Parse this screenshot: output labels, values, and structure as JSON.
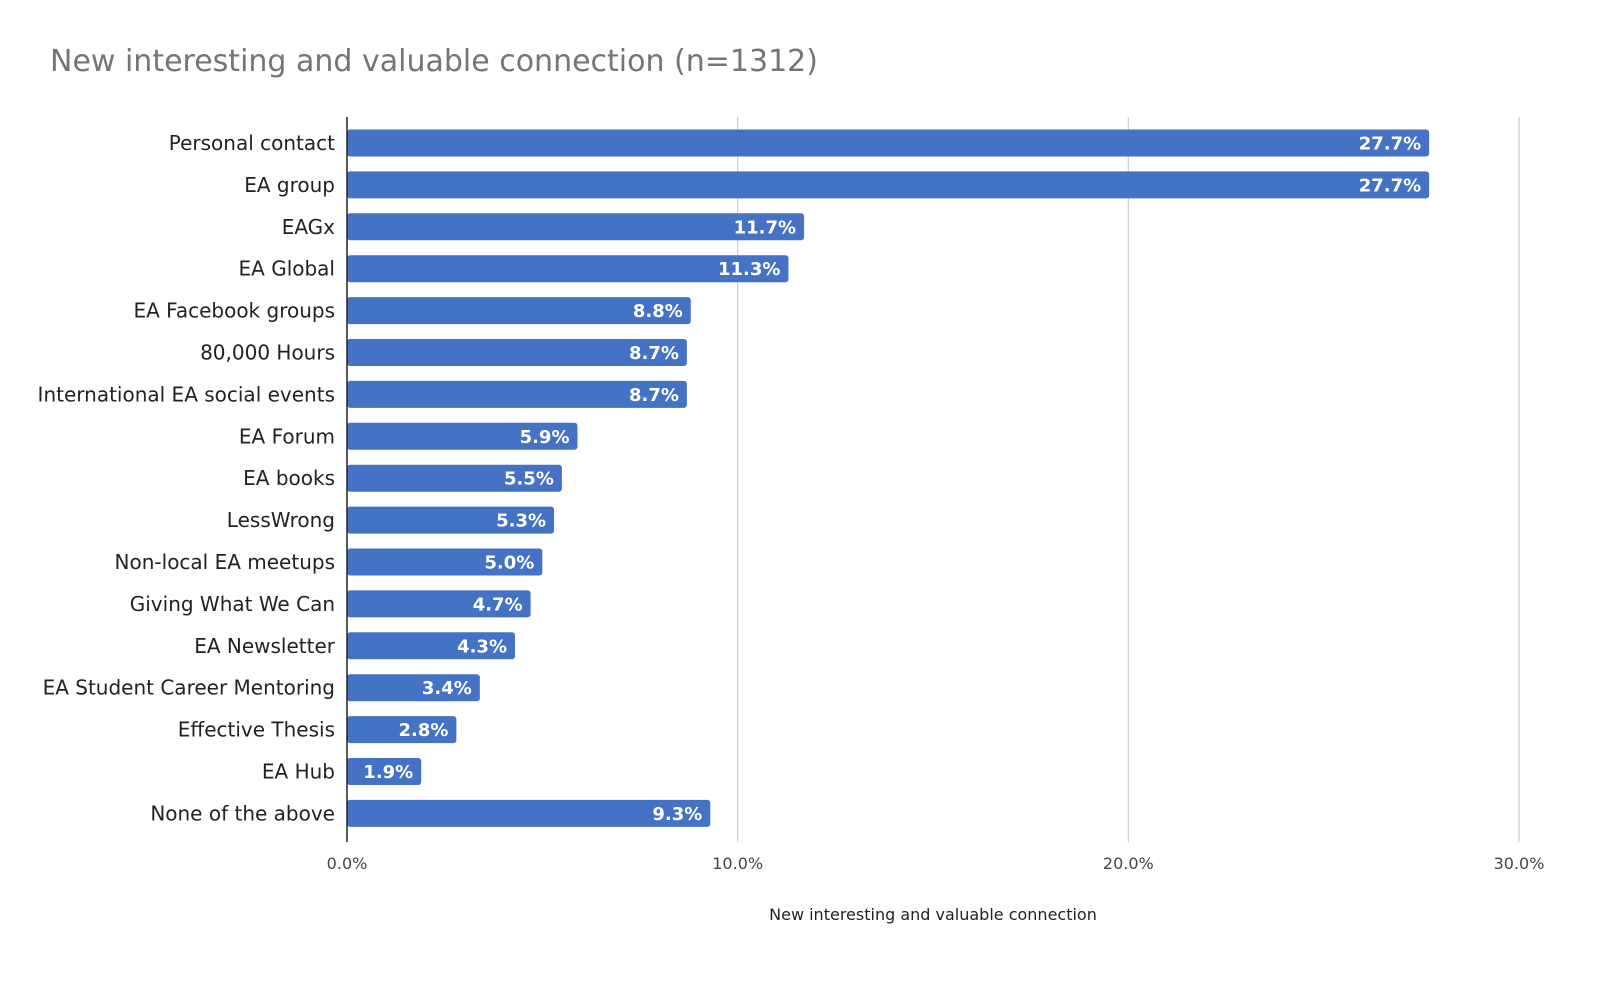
{
  "chart_data": {
    "type": "bar",
    "orientation": "horizontal",
    "title": "New interesting and valuable connection (n=1312)",
    "xlabel": "New interesting and valuable connection",
    "ylabel": "",
    "xlim": [
      0,
      30
    ],
    "ticks": [
      "0.0%",
      "10.0%",
      "20.0%",
      "30.0%"
    ],
    "tick_values": [
      0,
      10,
      20,
      30
    ],
    "grid": true,
    "legend": "none",
    "bar_color": "#4472c4",
    "categories": [
      "Personal contact",
      "EA group",
      "EAGx",
      "EA Global",
      "EA Facebook groups",
      "80,000 Hours",
      "International EA social events",
      "EA Forum",
      "EA books",
      "LessWrong",
      "Non-local EA meetups",
      "Giving What We Can",
      "EA Newsletter",
      "EA Student Career Mentoring",
      "Effective Thesis",
      "EA Hub",
      "None of the above"
    ],
    "values": [
      27.7,
      27.7,
      11.7,
      11.3,
      8.8,
      8.7,
      8.7,
      5.9,
      5.5,
      5.3,
      5.0,
      4.7,
      4.3,
      3.4,
      2.8,
      1.9,
      9.3
    ],
    "data_labels": [
      "27.7%",
      "27.7%",
      "11.7%",
      "11.3%",
      "8.8%",
      "8.7%",
      "8.7%",
      "5.9%",
      "5.5%",
      "5.3%",
      "5.0%",
      "4.7%",
      "4.3%",
      "3.4%",
      "2.8%",
      "1.9%",
      "9.3%"
    ]
  }
}
